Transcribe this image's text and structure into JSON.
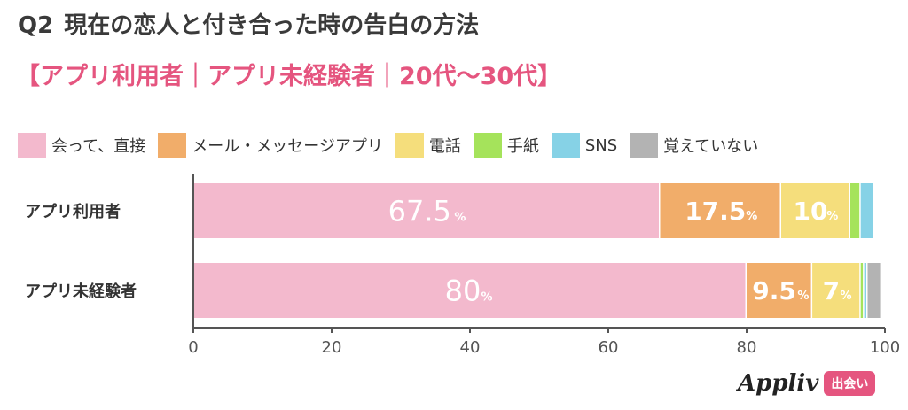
{
  "header": {
    "q_label": "Q2",
    "title": "現在の恋人と付き合った時の告白の方法",
    "subtitle": "【アプリ利用者｜アプリ未経験者｜20代〜30代】"
  },
  "brand": {
    "name": "Appliv",
    "tag": "出会い",
    "tag_color": "#e5557f"
  },
  "chart_data": {
    "type": "bar",
    "orientation": "horizontal",
    "stacked": true,
    "categories": [
      "アプリ利用者",
      "アプリ未経験者"
    ],
    "series": [
      {
        "name": "会って、直接",
        "color": "#f3b9cd",
        "values": [
          67.5,
          80
        ]
      },
      {
        "name": "メール・メッセージアプリ",
        "color": "#f1ad6a",
        "values": [
          17.5,
          9.5
        ]
      },
      {
        "name": "電話",
        "color": "#f5de7c",
        "values": [
          10,
          7
        ]
      },
      {
        "name": "手紙",
        "color": "#a5e35b",
        "values": [
          1.5,
          0.5
        ]
      },
      {
        "name": "SNS",
        "color": "#86d2e6",
        "values": [
          2,
          0.5
        ]
      },
      {
        "name": "覚えていない",
        "color": "#b3b3b3",
        "values": [
          0,
          2
        ]
      }
    ],
    "data_labels": [
      [
        "67.5",
        "17.5",
        "10",
        "",
        "",
        ""
      ],
      [
        "80",
        "9.5",
        "7",
        "",
        "",
        ""
      ]
    ],
    "label_unit": "%",
    "xlim": [
      0,
      100
    ],
    "xticks": [
      "0",
      "20",
      "40",
      "60",
      "80",
      "100"
    ],
    "legend_position": "top-left",
    "grid": false
  }
}
